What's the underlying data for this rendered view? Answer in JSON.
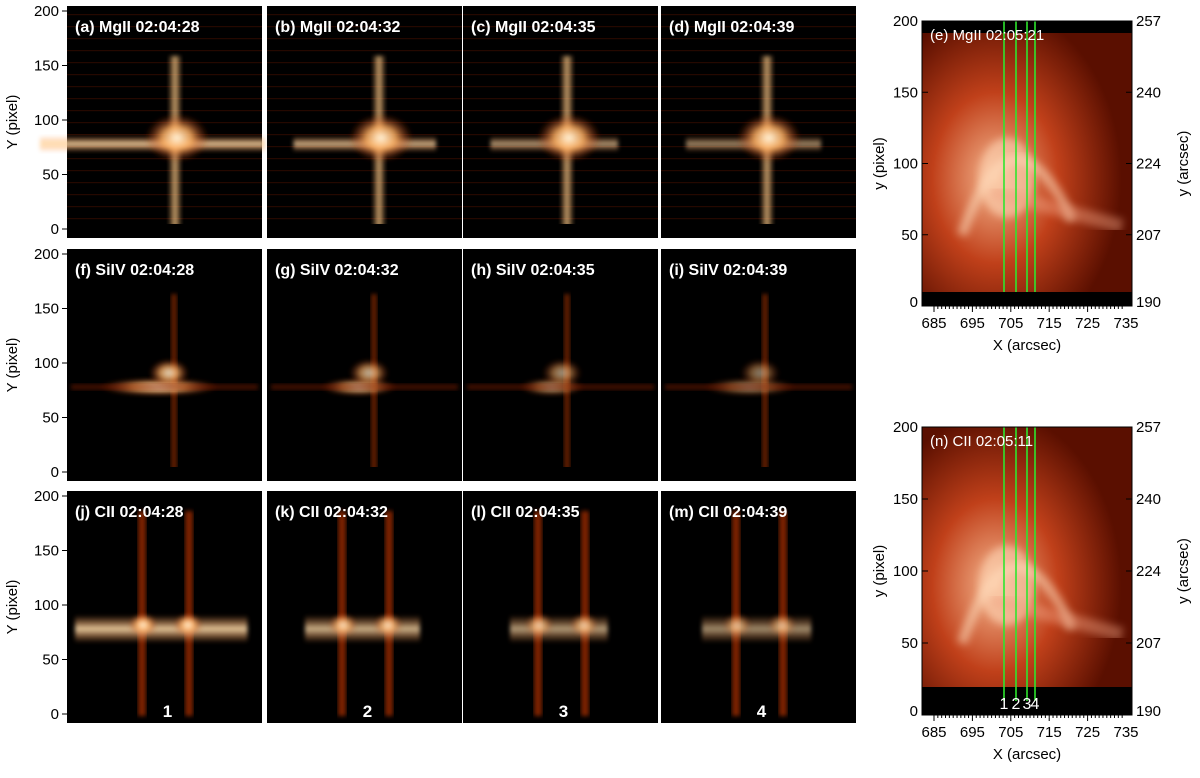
{
  "panels": [
    {
      "label": "(a) MgII 02:04:28",
      "line": "MgII",
      "row": 0,
      "col": 0
    },
    {
      "label": "(b) MgII 02:04:32",
      "line": "MgII",
      "row": 0,
      "col": 1
    },
    {
      "label": "(c) MgII 02:04:35",
      "line": "MgII",
      "row": 0,
      "col": 2
    },
    {
      "label": "(d) MgII 02:04:39",
      "line": "MgII",
      "row": 0,
      "col": 3
    },
    {
      "label": "(f) SiIV 02:04:28",
      "line": "SiIV",
      "row": 1,
      "col": 0
    },
    {
      "label": "(g) SiIV 02:04:32",
      "line": "SiIV",
      "row": 1,
      "col": 1
    },
    {
      "label": "(h) SiIV 02:04:35",
      "line": "SiIV",
      "row": 1,
      "col": 2
    },
    {
      "label": "(i) SiIV 02:04:39",
      "line": "SiIV",
      "row": 1,
      "col": 3
    },
    {
      "label": "(j) CII 02:04:28",
      "line": "CII",
      "row": 2,
      "col": 0
    },
    {
      "label": "(k) CII 02:04:32",
      "line": "CII",
      "row": 2,
      "col": 1
    },
    {
      "label": "(l) CII 02:04:35",
      "line": "CII",
      "row": 2,
      "col": 2
    },
    {
      "label": "(m) CII 02:04:39",
      "line": "CII",
      "row": 2,
      "col": 3
    }
  ],
  "slit_numbers": [
    "1",
    "2",
    "3",
    "4"
  ],
  "left_axis": {
    "ylabel": "Y (pixel)",
    "ticks": [
      "0",
      "50",
      "100",
      "150",
      "200"
    ]
  },
  "maps": [
    {
      "label": "(e) MgII 02:05:21",
      "xlabel": "X (arcsec)",
      "ylabel_left": "y (pixel)",
      "ylabel_right": "y (arcsec)",
      "xticks": [
        "685",
        "695",
        "705",
        "715",
        "725",
        "735"
      ],
      "yticks_left": [
        "0",
        "50",
        "100",
        "150",
        "200"
      ],
      "yticks_right": [
        "190",
        "207",
        "224",
        "240",
        "257"
      ],
      "show_slit_numbers": false
    },
    {
      "label": "(n) CII 02:05:11",
      "xlabel": "X (arcsec)",
      "ylabel_left": "y (pixel)",
      "ylabel_right": "y (arcsec)",
      "xticks": [
        "685",
        "695",
        "705",
        "715",
        "725",
        "735"
      ],
      "yticks_left": [
        "0",
        "50",
        "100",
        "150",
        "200"
      ],
      "yticks_right": [
        "190",
        "207",
        "224",
        "240",
        "257"
      ],
      "show_slit_numbers": true
    }
  ],
  "colors": {
    "background": "#000000",
    "text": "#ffffff",
    "slit": "#2ee62e",
    "axis": "#000000"
  }
}
